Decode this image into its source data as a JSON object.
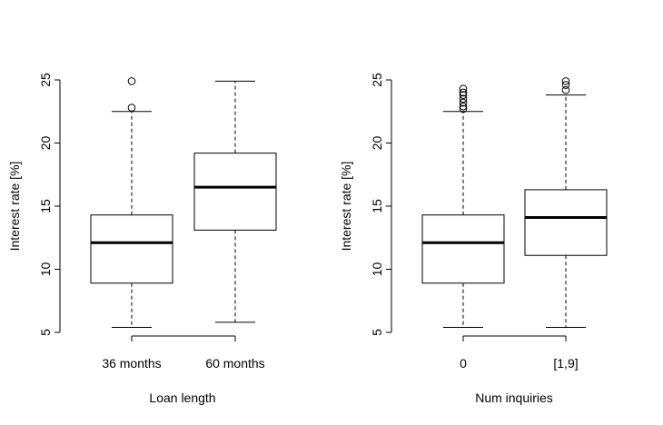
{
  "chart_data": [
    {
      "type": "box",
      "xlabel": "Loan length",
      "ylabel": "Interest rate [%]",
      "ylim": [
        5,
        25
      ],
      "yticks": [
        5,
        10,
        15,
        20,
        25
      ],
      "categories": [
        "36 months",
        "60 months"
      ],
      "boxes": [
        {
          "category": "36 months",
          "whisker_low": 5.4,
          "q1": 8.9,
          "median": 12.1,
          "q3": 14.3,
          "whisker_high": 22.5,
          "outliers": [
            22.8,
            24.9
          ]
        },
        {
          "category": "60 months",
          "whisker_low": 5.8,
          "q1": 13.1,
          "median": 16.5,
          "q3": 19.2,
          "whisker_high": 24.9,
          "outliers": []
        }
      ]
    },
    {
      "type": "box",
      "xlabel": "Num inquiries",
      "ylabel": "Interest rate [%]",
      "ylim": [
        5,
        25
      ],
      "yticks": [
        5,
        10,
        15,
        20,
        25
      ],
      "categories": [
        "0",
        "[1,9]"
      ],
      "boxes": [
        {
          "category": "0",
          "whisker_low": 5.4,
          "q1": 8.9,
          "median": 12.1,
          "q3": 14.3,
          "whisker_high": 22.5,
          "outliers": [
            22.7,
            22.9,
            23.2,
            23.5,
            23.8,
            24.0,
            24.3
          ]
        },
        {
          "category": "[1,9]",
          "whisker_low": 5.4,
          "q1": 11.1,
          "median": 14.1,
          "q3": 16.3,
          "whisker_high": 23.8,
          "outliers": [
            24.2,
            24.6,
            24.9
          ]
        }
      ]
    }
  ]
}
